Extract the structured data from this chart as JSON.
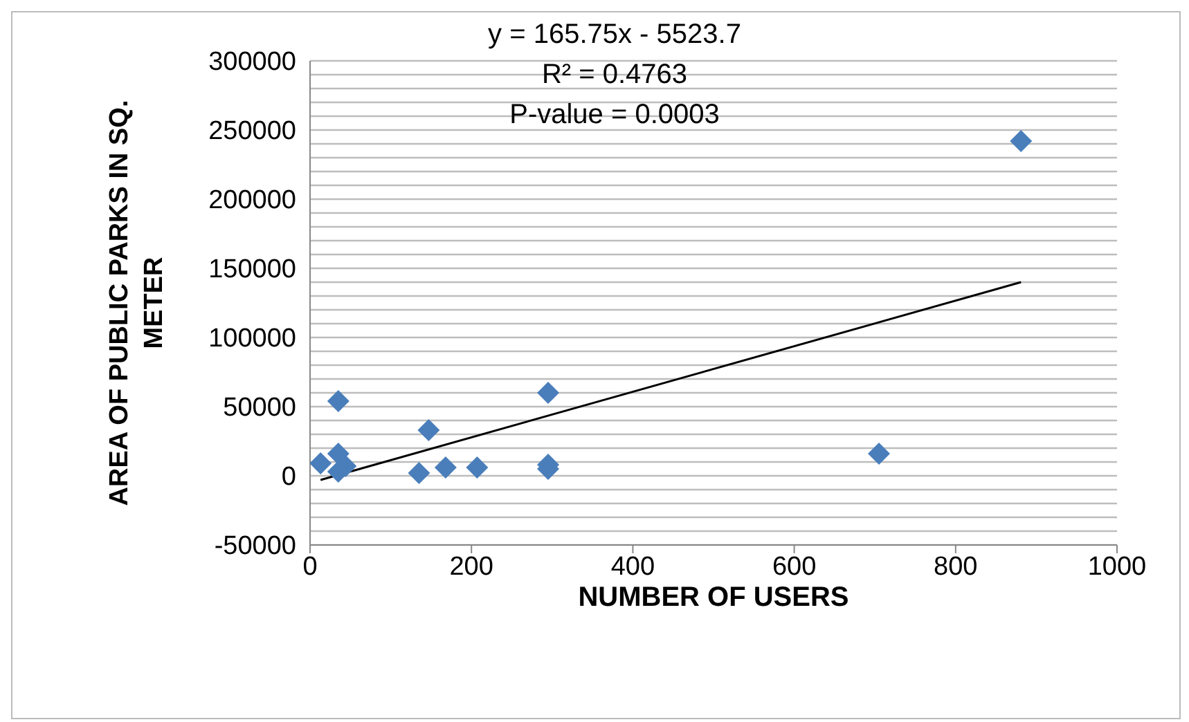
{
  "chart_data": {
    "type": "scatter",
    "xlabel": "NUMBER OF USERS",
    "ylabel": "AREA OF PUBLIC PARKS IN SQ. METER",
    "xlim": [
      0,
      1000
    ],
    "xticks": [
      0,
      200,
      400,
      600,
      800,
      1000
    ],
    "ylim": [
      -50000,
      300000
    ],
    "yticks": [
      -50000,
      {
        "value": -40000,
        "label": null
      },
      {
        "value": -30000,
        "label": null
      },
      {
        "value": -20000,
        "label": null
      },
      {
        "value": -10000,
        "label": null
      },
      0,
      {
        "value": 10000,
        "label": null
      },
      {
        "value": 20000,
        "label": null
      },
      {
        "value": 30000,
        "label": null
      },
      {
        "value": 40000,
        "label": null
      },
      50000,
      {
        "value": 60000,
        "label": null
      },
      {
        "value": 70000,
        "label": null
      },
      {
        "value": 80000,
        "label": null
      },
      {
        "value": 90000,
        "label": null
      },
      100000,
      {
        "value": 110000,
        "label": null
      },
      {
        "value": 120000,
        "label": null
      },
      {
        "value": 130000,
        "label": null
      },
      {
        "value": 140000,
        "label": null
      },
      150000,
      {
        "value": 160000,
        "label": null
      },
      {
        "value": 170000,
        "label": null
      },
      {
        "value": 180000,
        "label": null
      },
      {
        "value": 190000,
        "label": null
      },
      200000,
      {
        "value": 210000,
        "label": null
      },
      {
        "value": 220000,
        "label": null
      },
      {
        "value": 230000,
        "label": null
      },
      {
        "value": 240000,
        "label": null
      },
      250000,
      {
        "value": 260000,
        "label": null
      },
      {
        "value": 270000,
        "label": null
      },
      {
        "value": 280000,
        "label": null
      },
      {
        "value": 290000,
        "label": null
      },
      300000
    ],
    "grid": "y",
    "legend": false,
    "marker": "diamond",
    "series": [
      {
        "color": "#4a7ebb",
        "x": [
          13,
          35,
          35,
          44,
          35,
          135,
          147,
          168,
          207,
          295,
          295,
          295,
          705,
          881
        ],
        "values": [
          9000,
          54000,
          16000,
          7000,
          3000,
          2000,
          33000,
          6000,
          6000,
          60000,
          8000,
          5000,
          16000,
          242000
        ]
      },
      {
        "type": "line",
        "color": "#000000",
        "marker": "none",
        "x": [
          13,
          881
        ],
        "values": [
          -3000,
          140000
        ]
      }
    ],
    "annotations": [
      "y = 165.75x - 5523.7",
      "R² = 0.4763",
      "P-value = 0.0003"
    ]
  }
}
